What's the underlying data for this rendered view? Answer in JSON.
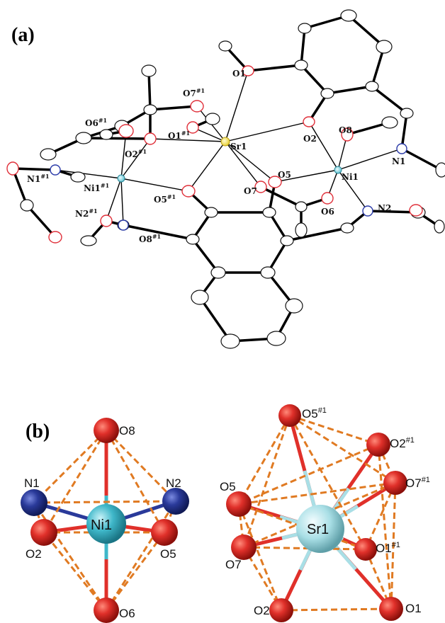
{
  "panel_a": {
    "label": "(a)",
    "atoms": {
      "sr1": "Sr1",
      "ni1": "Ni1",
      "ni1_sym": "Ni1",
      "o1": "O1",
      "o2": "O2",
      "o5": "O5",
      "o6": "O6",
      "o7": "O7",
      "o8": "O8",
      "o1_sym": "O1",
      "o2_sym": "O2",
      "o5_sym": "O5",
      "o6_sym": "O6",
      "o7_sym": "O7",
      "o8_sym": "O8",
      "n1": "N1",
      "n2": "N2",
      "n1_sym": "N1",
      "n2_sym": "N2"
    },
    "sym_sup": "#1"
  },
  "panel_b": {
    "label": "(b)",
    "ni_center": "Ni1",
    "sr_center": "Sr1",
    "ni_ligands": {
      "o8": "O8",
      "n1": "N1",
      "n2": "N2",
      "o2": "O2",
      "o5": "O5",
      "o6": "O6"
    },
    "sr_ligands": {
      "o5_sym": "O5",
      "o2_sym": "O2",
      "o7_sym": "O7",
      "o5": "O5",
      "o1_sym": "O1",
      "o7": "O7",
      "o2": "O2",
      "o1": "O1"
    },
    "sym_sup": "#1"
  },
  "colors": {
    "oxygen": "#e0302a",
    "nickel": "#3fb7c9",
    "nitrogen": "#2a3a9a",
    "strontium": "#a9dfe6",
    "polyhedron_edge": "#e07a22"
  }
}
